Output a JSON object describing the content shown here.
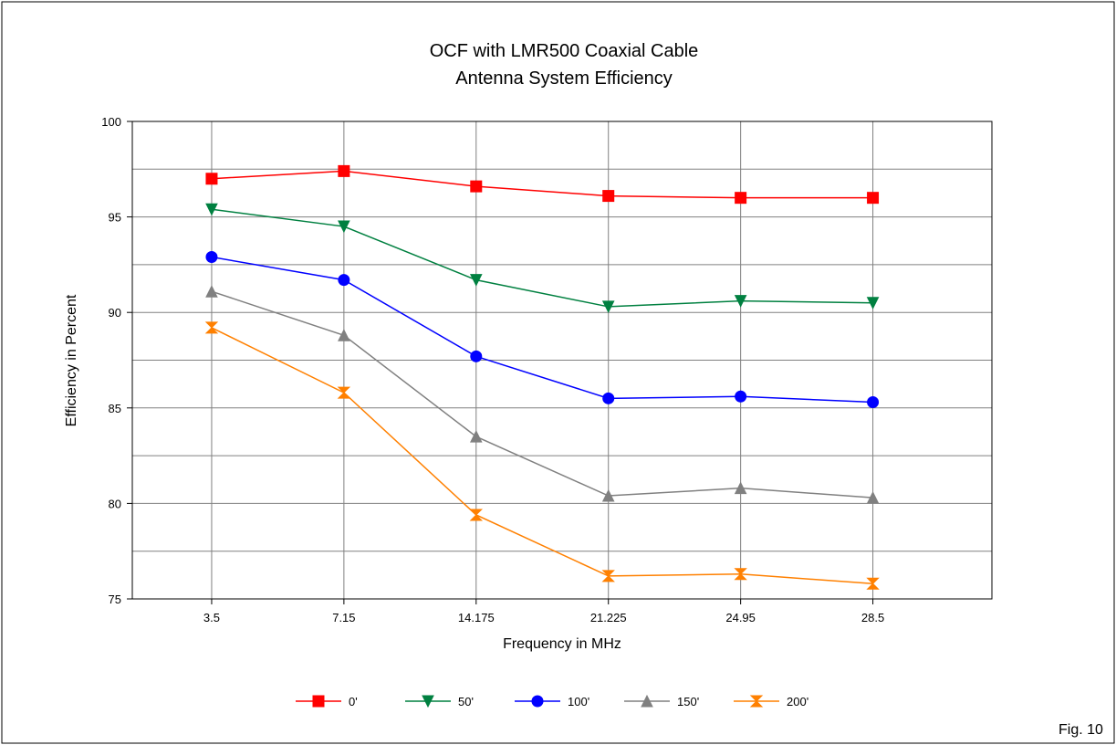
{
  "chart_data": {
    "type": "line",
    "title": [
      "OCF with LMR500 Coaxial Cable",
      "Antenna System Efficiency"
    ],
    "xlabel": "Frequency in MHz",
    "ylabel": "Efficiency in Percent",
    "categories": [
      "3.5",
      "7.15",
      "14.175",
      "21.225",
      "24.95",
      "28.5"
    ],
    "ylim": [
      75,
      100
    ],
    "yticks": [
      "75",
      "80",
      "85",
      "90",
      "95",
      "100"
    ],
    "grid": true,
    "legend": "bottom",
    "series": [
      {
        "name": "0'",
        "color": "#ff0000",
        "marker": "square",
        "values": [
          97.0,
          97.4,
          96.6,
          96.1,
          96.0,
          96.0
        ]
      },
      {
        "name": "50'",
        "color": "#008040",
        "marker": "triangle-down",
        "values": [
          95.4,
          94.5,
          91.7,
          90.3,
          90.6,
          90.5
        ]
      },
      {
        "name": "100'",
        "color": "#0000ff",
        "marker": "circle",
        "values": [
          92.9,
          91.7,
          87.7,
          85.5,
          85.6,
          85.3
        ]
      },
      {
        "name": "150'",
        "color": "#808080",
        "marker": "triangle-up",
        "values": [
          91.1,
          88.8,
          83.5,
          80.4,
          80.8,
          80.3
        ]
      },
      {
        "name": "200'",
        "color": "#ff8000",
        "marker": "hourglass",
        "values": [
          89.2,
          85.8,
          79.4,
          76.2,
          76.3,
          75.8
        ]
      }
    ]
  },
  "figure_label": "Fig. 10"
}
